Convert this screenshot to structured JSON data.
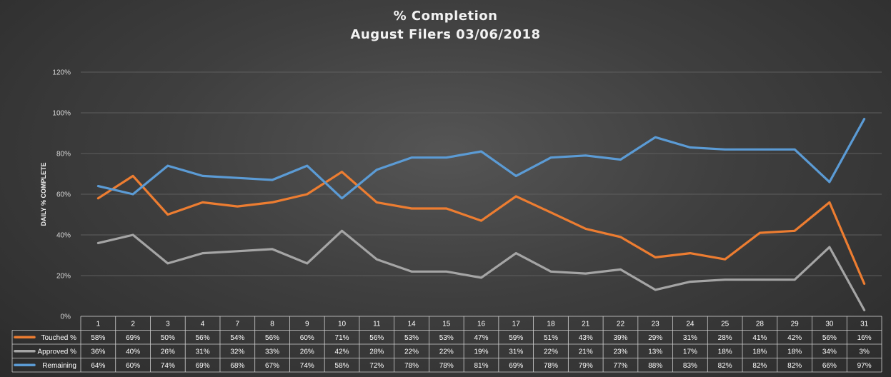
{
  "chart_data": {
    "type": "line",
    "title": "% Completion",
    "subtitle": "August  Filers 03/06/2018",
    "ylabel": "DAILY % COMPLETE",
    "xlabel": "",
    "ylim": [
      0,
      120
    ],
    "y_ticks": [
      "0%",
      "20%",
      "40%",
      "60%",
      "80%",
      "100%",
      "120%"
    ],
    "grid": true,
    "legend_placement": "data-table-left",
    "categories": [
      "1",
      "2",
      "3",
      "4",
      "7",
      "8",
      "9",
      "10",
      "11",
      "14",
      "15",
      "16",
      "17",
      "18",
      "21",
      "22",
      "23",
      "24",
      "25",
      "28",
      "29",
      "30",
      "31"
    ],
    "series": [
      {
        "name": "Touched %",
        "color": "#ed7d31",
        "values": [
          58,
          69,
          50,
          56,
          54,
          56,
          60,
          71,
          56,
          53,
          53,
          47,
          59,
          51,
          43,
          39,
          29,
          31,
          28,
          41,
          42,
          56,
          16
        ],
        "labels": [
          "58%",
          "69%",
          "50%",
          "56%",
          "54%",
          "56%",
          "60%",
          "71%",
          "56%",
          "53%",
          "53%",
          "47%",
          "59%",
          "51%",
          "43%",
          "39%",
          "29%",
          "31%",
          "28%",
          "41%",
          "42%",
          "56%",
          "16%"
        ]
      },
      {
        "name": "Approved %",
        "color": "#a5a5a5",
        "values": [
          36,
          40,
          26,
          31,
          32,
          33,
          26,
          42,
          28,
          22,
          22,
          19,
          31,
          22,
          21,
          23,
          13,
          17,
          18,
          18,
          18,
          34,
          3
        ],
        "labels": [
          "36%",
          "40%",
          "26%",
          "31%",
          "32%",
          "33%",
          "26%",
          "42%",
          "28%",
          "22%",
          "22%",
          "19%",
          "31%",
          "22%",
          "21%",
          "23%",
          "13%",
          "17%",
          "18%",
          "18%",
          "18%",
          "34%",
          "3%"
        ]
      },
      {
        "name": "Remaining",
        "color": "#5b9bd5",
        "values": [
          64,
          60,
          74,
          69,
          68,
          67,
          74,
          58,
          72,
          78,
          78,
          81,
          69,
          78,
          79,
          77,
          88,
          83,
          82,
          82,
          82,
          66,
          97
        ],
        "labels": [
          "64%",
          "60%",
          "74%",
          "69%",
          "68%",
          "67%",
          "74%",
          "58%",
          "72%",
          "78%",
          "78%",
          "81%",
          "69%",
          "78%",
          "79%",
          "77%",
          "88%",
          "83%",
          "82%",
          "82%",
          "82%",
          "66%",
          "97%"
        ]
      }
    ]
  }
}
